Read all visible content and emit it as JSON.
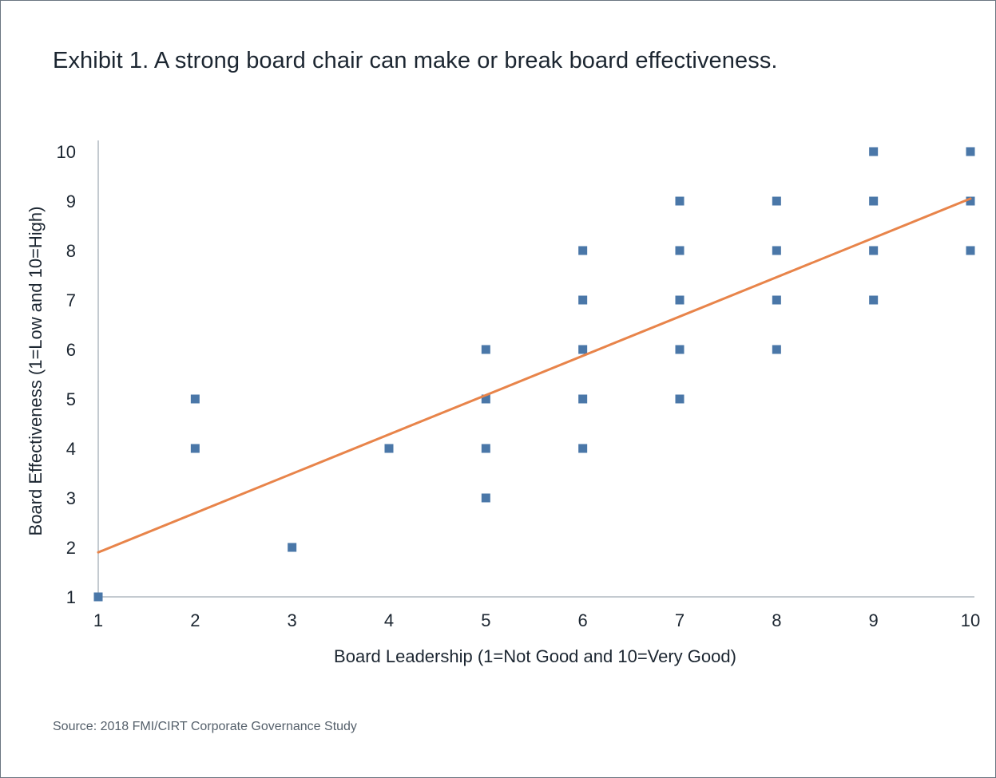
{
  "title": "Exhibit 1. A strong board chair can make or break board effectiveness.",
  "source": "Source: 2018 FMI/CIRT Corporate Governance Study",
  "chart_data": {
    "type": "scatter",
    "xlabel": "Board Leadership (1=Not Good and 10=Very Good)",
    "ylabel": "Board Effectiveness (1=Low and 10=High)",
    "xlim": [
      1,
      10
    ],
    "ylim": [
      1,
      10
    ],
    "x_ticks": [
      "1",
      "2",
      "3",
      "4",
      "5",
      "6",
      "7",
      "8",
      "9",
      "10"
    ],
    "y_ticks": [
      "1",
      "2",
      "3",
      "4",
      "5",
      "6",
      "7",
      "8",
      "9",
      "10"
    ],
    "grid": false,
    "legend": "none",
    "points": [
      {
        "x": 1,
        "y": 1
      },
      {
        "x": 2,
        "y": 4
      },
      {
        "x": 2,
        "y": 5
      },
      {
        "x": 3,
        "y": 2
      },
      {
        "x": 4,
        "y": 4
      },
      {
        "x": 5,
        "y": 3
      },
      {
        "x": 5,
        "y": 4
      },
      {
        "x": 5,
        "y": 5
      },
      {
        "x": 5,
        "y": 6
      },
      {
        "x": 6,
        "y": 4
      },
      {
        "x": 6,
        "y": 5
      },
      {
        "x": 6,
        "y": 6
      },
      {
        "x": 6,
        "y": 7
      },
      {
        "x": 6,
        "y": 8
      },
      {
        "x": 7,
        "y": 5
      },
      {
        "x": 7,
        "y": 6
      },
      {
        "x": 7,
        "y": 7
      },
      {
        "x": 7,
        "y": 8
      },
      {
        "x": 7,
        "y": 9
      },
      {
        "x": 8,
        "y": 6
      },
      {
        "x": 8,
        "y": 7
      },
      {
        "x": 8,
        "y": 8
      },
      {
        "x": 8,
        "y": 9
      },
      {
        "x": 9,
        "y": 7
      },
      {
        "x": 9,
        "y": 8
      },
      {
        "x": 9,
        "y": 9
      },
      {
        "x": 9,
        "y": 10
      },
      {
        "x": 10,
        "y": 8
      },
      {
        "x": 10,
        "y": 9
      },
      {
        "x": 10,
        "y": 10
      }
    ],
    "trendline": {
      "type": "linear",
      "from": {
        "x": 1,
        "y": 1.9
      },
      "to": {
        "x": 10,
        "y": 9.05
      }
    },
    "colors": {
      "points": "#4a77a8",
      "trendline": "#e8844a",
      "axis": "#8a94a0"
    }
  }
}
